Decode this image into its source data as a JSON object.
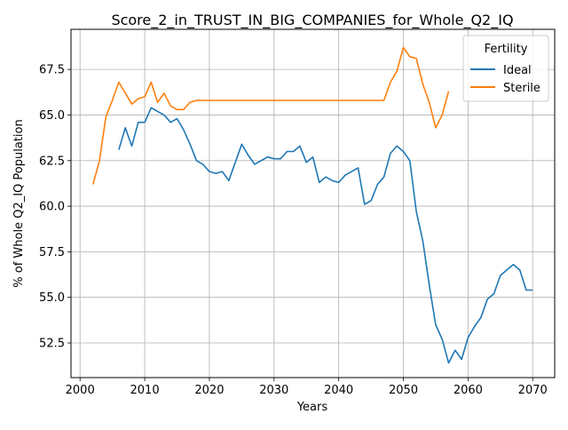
{
  "chart_data": {
    "type": "line",
    "title": "Score_2_in_TRUST_IN_BIG_COMPANIES_for_Whole_Q2_IQ",
    "xlabel": "Years",
    "ylabel": "% of Whole Q2_IQ Population",
    "xlim": [
      1998.6,
      2073.4
    ],
    "ylim": [
      50.6,
      69.7
    ],
    "xticks": [
      2000,
      2010,
      2020,
      2030,
      2040,
      2050,
      2060,
      2070
    ],
    "yticks": [
      52.5,
      55.0,
      57.5,
      60.0,
      62.5,
      65.0,
      67.5
    ],
    "ytick_labels": [
      "52.5",
      "55.0",
      "57.5",
      "60.0",
      "62.5",
      "65.0",
      "67.5"
    ],
    "grid": true,
    "legend": {
      "title": "Fertility",
      "placement": "top-right"
    },
    "series": [
      {
        "name": "Ideal",
        "color": "#1f77b4",
        "x": [
          2006,
          2007,
          2008,
          2009,
          2010,
          2011,
          2012,
          2013,
          2014,
          2015,
          2016,
          2017,
          2018,
          2019,
          2020,
          2021,
          2022,
          2023,
          2024,
          2025,
          2026,
          2027,
          2028,
          2029,
          2030,
          2031,
          2032,
          2033,
          2034,
          2035,
          2036,
          2037,
          2038,
          2039,
          2040,
          2041,
          2042,
          2043,
          2044,
          2045,
          2046,
          2047,
          2048,
          2049,
          2050,
          2051,
          2052,
          2053,
          2054,
          2055,
          2056,
          2057,
          2058,
          2059,
          2060,
          2061,
          2062,
          2063,
          2064,
          2065,
          2066,
          2067,
          2068,
          2069,
          2070
        ],
        "values": [
          63.1,
          64.3,
          63.3,
          64.6,
          64.6,
          65.4,
          65.2,
          65.0,
          64.6,
          64.8,
          64.2,
          63.4,
          62.5,
          62.3,
          61.9,
          61.8,
          61.9,
          61.4,
          62.4,
          63.4,
          62.8,
          62.3,
          62.5,
          62.7,
          62.6,
          62.6,
          63.0,
          63.0,
          63.3,
          62.4,
          62.7,
          61.3,
          61.6,
          61.4,
          61.3,
          61.7,
          61.9,
          62.1,
          60.1,
          60.3,
          61.2,
          61.6,
          62.9,
          63.3,
          63.0,
          62.5,
          59.7,
          58.1,
          55.7,
          53.5,
          52.7,
          51.4,
          52.1,
          51.6,
          52.8,
          53.4,
          53.9,
          54.9,
          55.2,
          56.2,
          56.5,
          56.8,
          56.5,
          55.4,
          55.4
        ]
      },
      {
        "name": "Sterile",
        "color": "#ff7f0e",
        "x": [
          2002,
          2003,
          2004,
          2005,
          2006,
          2007,
          2008,
          2009,
          2010,
          2011,
          2012,
          2013,
          2014,
          2015,
          2016,
          2017,
          2018,
          2019,
          2020,
          2021,
          2022,
          2023,
          2024,
          2025,
          2026,
          2027,
          2028,
          2029,
          2030,
          2031,
          2032,
          2033,
          2034,
          2035,
          2036,
          2037,
          2038,
          2039,
          2040,
          2041,
          2042,
          2043,
          2044,
          2045,
          2046,
          2047,
          2048,
          2049,
          2050,
          2051,
          2052,
          2053,
          2054,
          2055,
          2056,
          2057
        ],
        "values": [
          61.2,
          62.5,
          64.9,
          65.8,
          66.8,
          66.2,
          65.6,
          65.9,
          66.0,
          66.8,
          65.7,
          66.2,
          65.5,
          65.3,
          65.3,
          65.7,
          65.8,
          65.8,
          65.8,
          65.8,
          65.8,
          65.8,
          65.8,
          65.8,
          65.8,
          65.8,
          65.8,
          65.8,
          65.8,
          65.8,
          65.8,
          65.8,
          65.8,
          65.8,
          65.8,
          65.8,
          65.8,
          65.8,
          65.8,
          65.8,
          65.8,
          65.8,
          65.8,
          65.8,
          65.8,
          65.8,
          66.8,
          67.4,
          68.7,
          68.2,
          68.1,
          66.7,
          65.7,
          64.3,
          65.0,
          66.3
        ]
      }
    ]
  }
}
